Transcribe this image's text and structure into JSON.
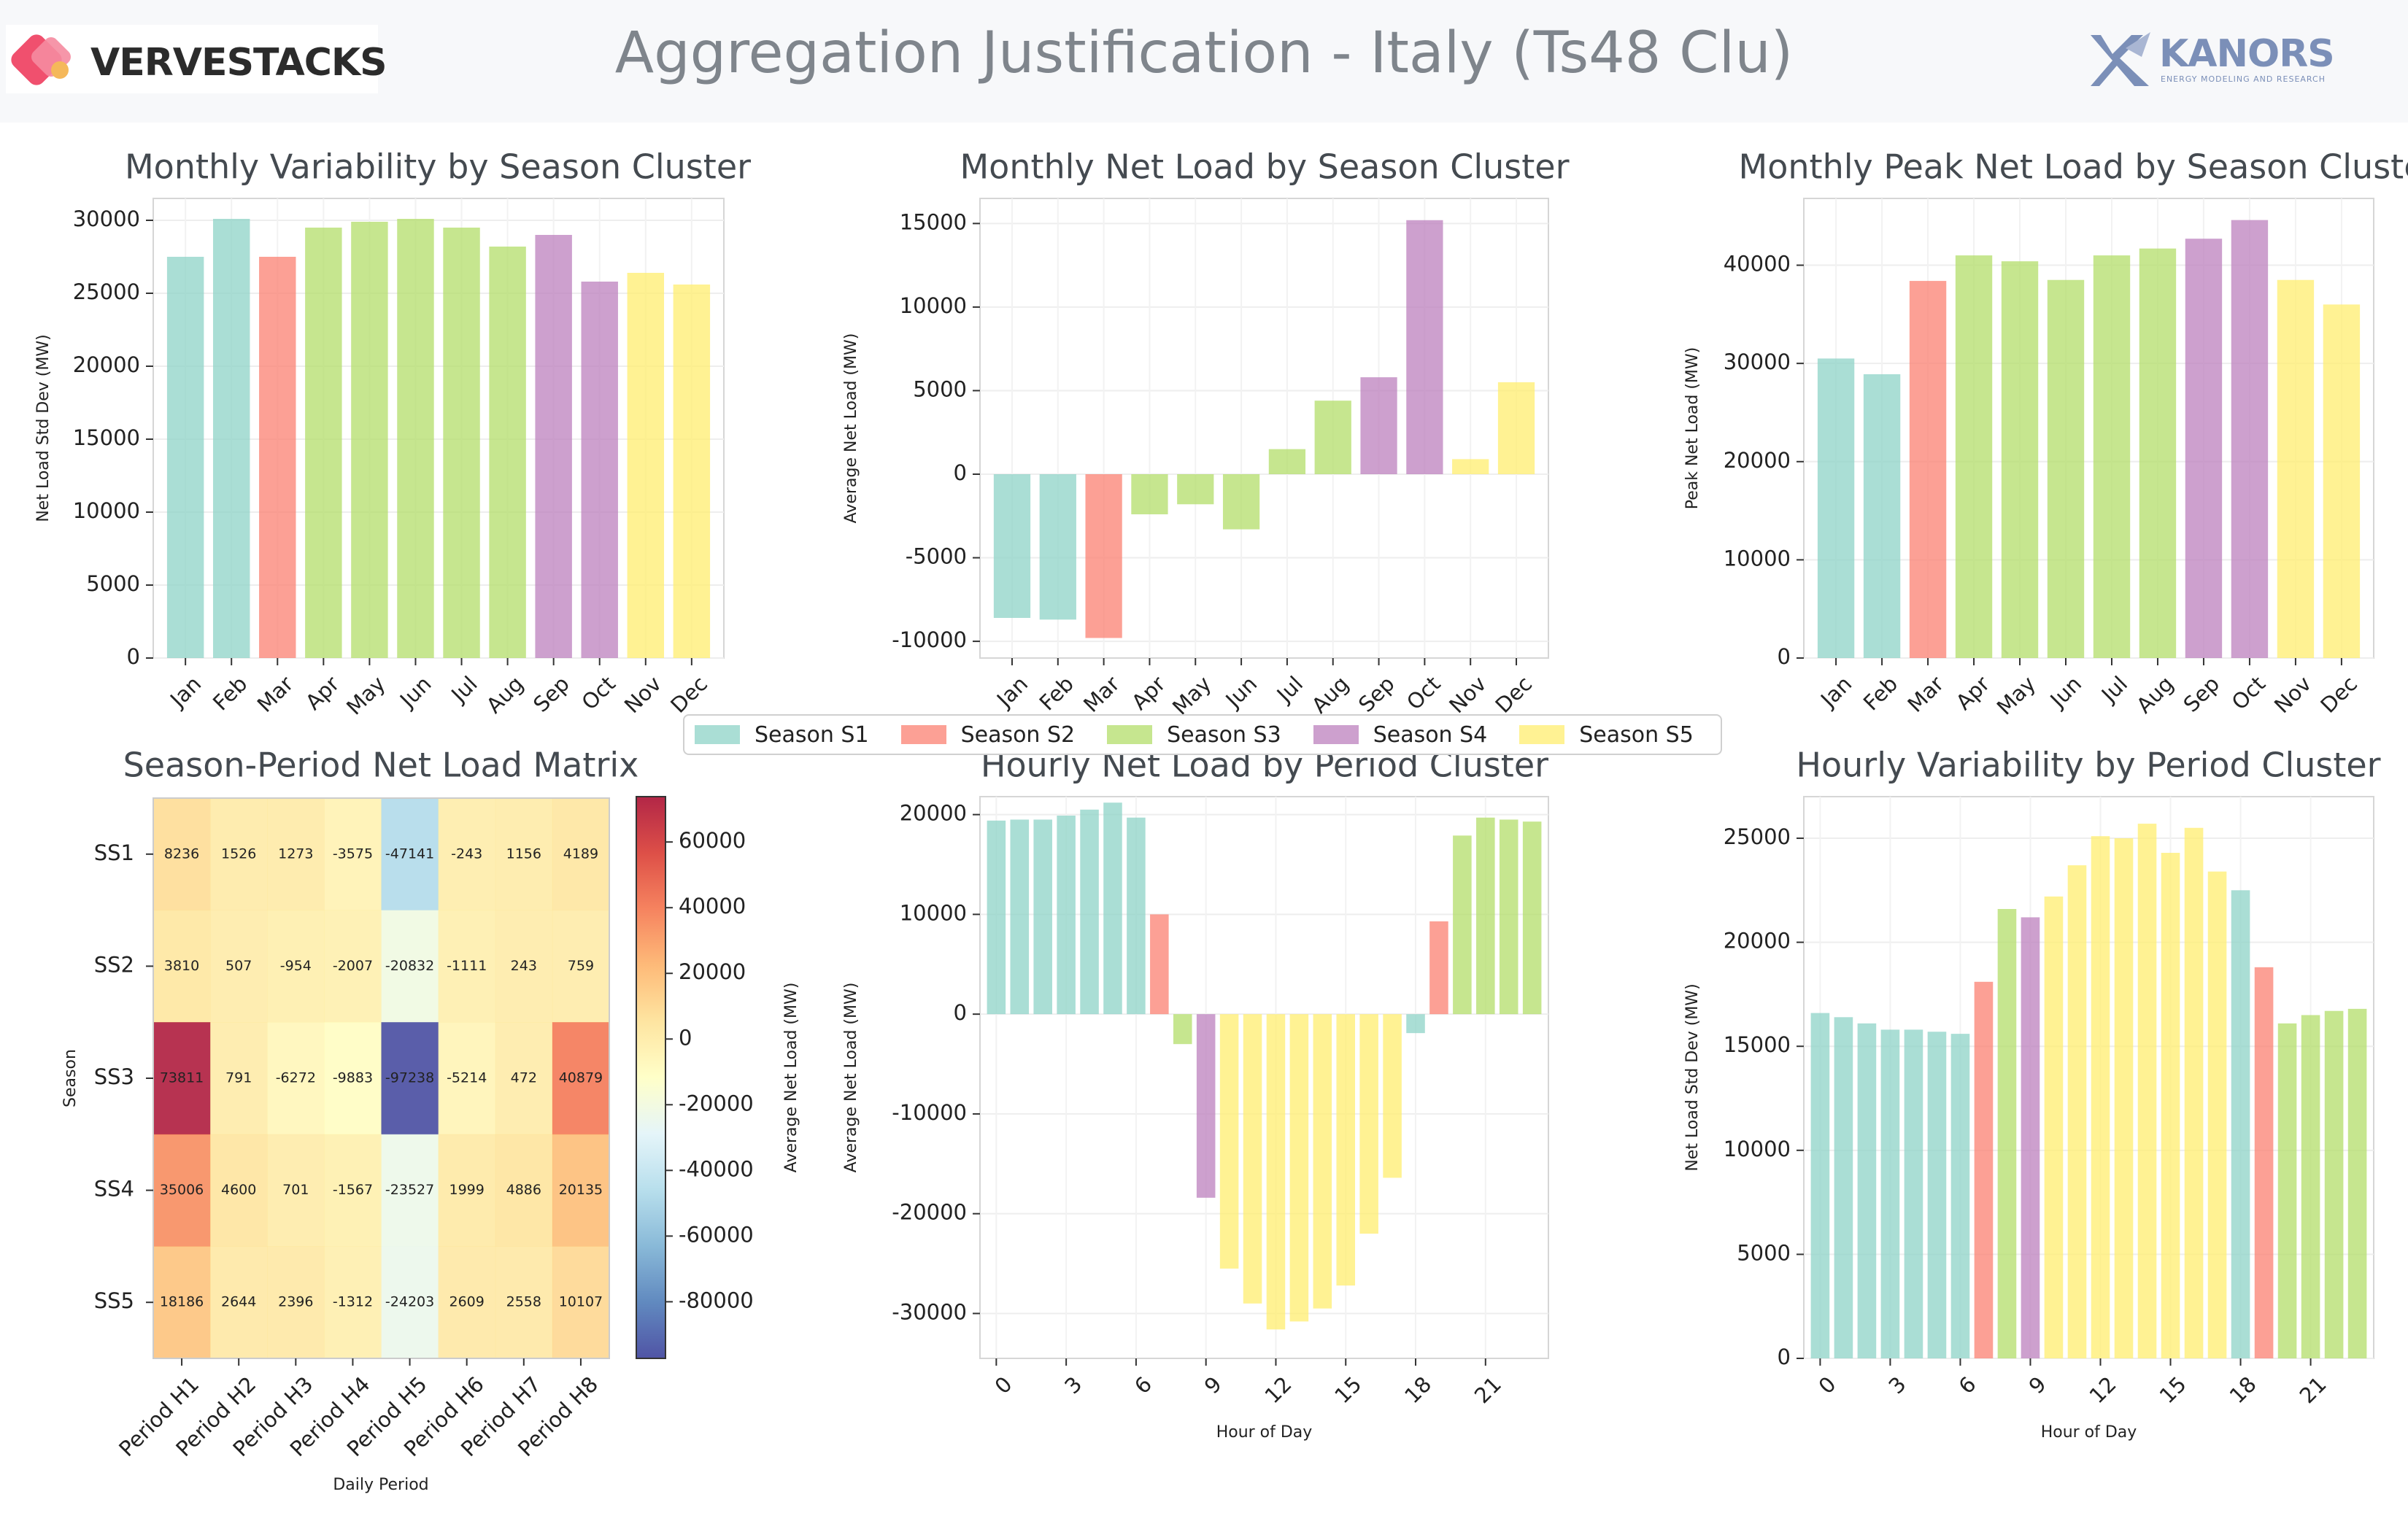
{
  "header": {
    "title": "Aggregation Justification - Italy (Ts48 Clu)",
    "left_logo_text": "VERVESTACKS",
    "right_logo_text": "KANORS",
    "right_logo_subtext": "ENERGY MODELING AND RESEARCH"
  },
  "colors": {
    "S1": "#8dd3c7",
    "S2": "#fb8072",
    "S3": "#b3de69",
    "S4": "#bc80bd",
    "S5": "#ffed6f",
    "vervestacks_logo": "#f0506e",
    "kanors_logo": "#7b8fb8"
  },
  "legend": [
    {
      "key": "S1",
      "label": "Season S1"
    },
    {
      "key": "S2",
      "label": "Season S2"
    },
    {
      "key": "S3",
      "label": "Season S3"
    },
    {
      "key": "S4",
      "label": "Season S4"
    },
    {
      "key": "S5",
      "label": "Season S5"
    }
  ],
  "chart_data": [
    {
      "id": "c1",
      "type": "bar",
      "title": "Monthly Variability by Season Cluster",
      "xlabel": "",
      "ylabel": "Net Load Std Dev (MW)",
      "categories": [
        "Jan",
        "Feb",
        "Mar",
        "Apr",
        "May",
        "Jun",
        "Jul",
        "Aug",
        "Sep",
        "Oct",
        "Nov",
        "Dec"
      ],
      "values": [
        27500,
        30100,
        27500,
        29500,
        29900,
        30100,
        29500,
        28200,
        29000,
        25800,
        26400,
        25600
      ],
      "colors": [
        "S1",
        "S1",
        "S2",
        "S3",
        "S3",
        "S3",
        "S3",
        "S3",
        "S4",
        "S4",
        "S5",
        "S5"
      ],
      "ylim": [
        0,
        31500
      ],
      "yticks": [
        0,
        5000,
        10000,
        15000,
        20000,
        25000,
        30000
      ]
    },
    {
      "id": "c2",
      "type": "bar",
      "title": "Monthly Net Load by Season Cluster",
      "xlabel": "",
      "ylabel": "Average Net Load (MW)",
      "categories": [
        "Jan",
        "Feb",
        "Mar",
        "Apr",
        "May",
        "Jun",
        "Jul",
        "Aug",
        "Sep",
        "Oct",
        "Nov",
        "Dec"
      ],
      "values": [
        -8600,
        -8700,
        -9800,
        -2400,
        -1800,
        -3300,
        1500,
        4400,
        5800,
        15200,
        900,
        5500
      ],
      "colors": [
        "S1",
        "S1",
        "S2",
        "S3",
        "S3",
        "S3",
        "S3",
        "S3",
        "S4",
        "S4",
        "S5",
        "S5"
      ],
      "ylim": [
        -11000,
        16500
      ],
      "yticks": [
        -10000,
        -5000,
        0,
        5000,
        10000,
        15000
      ]
    },
    {
      "id": "c3",
      "type": "bar",
      "title": "Monthly Peak Net Load by Season Cluster",
      "xlabel": "",
      "ylabel": "Peak Net Load (MW)",
      "categories": [
        "Jan",
        "Feb",
        "Mar",
        "Apr",
        "May",
        "Jun",
        "Jul",
        "Aug",
        "Sep",
        "Oct",
        "Nov",
        "Dec"
      ],
      "values": [
        30500,
        28900,
        38400,
        41000,
        40400,
        38500,
        41000,
        41700,
        42700,
        44600,
        38500,
        36000
      ],
      "colors": [
        "S1",
        "S1",
        "S2",
        "S3",
        "S3",
        "S3",
        "S3",
        "S3",
        "S4",
        "S4",
        "S5",
        "S5"
      ],
      "ylim": [
        0,
        46800
      ],
      "yticks": [
        0,
        10000,
        20000,
        30000,
        40000
      ]
    },
    {
      "id": "c4",
      "type": "heatmap",
      "title": "Season-Period Net Load Matrix",
      "xlabel": "Daily Period",
      "ylabel": "Season",
      "colorbar_label": "Average Net Load (MW)",
      "rows": [
        "SS1",
        "SS2",
        "SS3",
        "SS4",
        "SS5"
      ],
      "cols": [
        "Period H1",
        "Period H2",
        "Period H3",
        "Period H4",
        "Period H5",
        "Period H6",
        "Period H7",
        "Period H8"
      ],
      "values": [
        [
          8236,
          1526,
          1273,
          -3575,
          -47141,
          -243,
          1156,
          4189
        ],
        [
          3810,
          507,
          -954,
          -2007,
          -20832,
          -1111,
          243,
          759
        ],
        [
          73811,
          791,
          -6272,
          -9883,
          -97238,
          -5214,
          472,
          40879
        ],
        [
          35006,
          4600,
          701,
          -1567,
          -23527,
          1999,
          4886,
          20135
        ],
        [
          18186,
          2644,
          2396,
          -1312,
          -24203,
          2609,
          2558,
          10107
        ]
      ],
      "vmin": -97238,
      "vmax": 73811,
      "colorbar_ticks": [
        -80000,
        -60000,
        -40000,
        -20000,
        0,
        20000,
        40000,
        60000
      ],
      "colormap": "RdYlBu_r"
    },
    {
      "id": "c5",
      "type": "bar",
      "title": "Hourly Net Load by Period Cluster",
      "xlabel": "Hour of Day",
      "ylabel": "Average Net Load (MW)",
      "categories": [
        0,
        1,
        2,
        3,
        4,
        5,
        6,
        7,
        8,
        9,
        10,
        11,
        12,
        13,
        14,
        15,
        16,
        17,
        18,
        19,
        20,
        21,
        22,
        23
      ],
      "xticks": [
        0,
        3,
        6,
        9,
        12,
        15,
        18,
        21
      ],
      "values": [
        19400,
        19500,
        19500,
        19900,
        20500,
        21200,
        19700,
        10000,
        -3000,
        -18400,
        -25500,
        -29000,
        -31600,
        -30800,
        -29500,
        -27200,
        -22000,
        -16400,
        -1900,
        9300,
        17900,
        19700,
        19500,
        19300
      ],
      "colors": [
        "S1",
        "S1",
        "S1",
        "S1",
        "S1",
        "S1",
        "S1",
        "S2",
        "S3",
        "S4",
        "S5",
        "S5",
        "S5",
        "S5",
        "S5",
        "S5",
        "S5",
        "S5",
        "S1",
        "S2",
        "S3",
        "S3",
        "S3",
        "S3"
      ],
      "ylim": [
        -34500,
        21800
      ],
      "yticks": [
        -30000,
        -20000,
        -10000,
        0,
        10000,
        20000
      ]
    },
    {
      "id": "c6",
      "type": "bar",
      "title": "Hourly Variability by Period Cluster",
      "xlabel": "Hour of Day",
      "ylabel": "Net Load Std Dev (MW)",
      "categories": [
        0,
        1,
        2,
        3,
        4,
        5,
        6,
        7,
        8,
        9,
        10,
        11,
        12,
        13,
        14,
        15,
        16,
        17,
        18,
        19,
        20,
        21,
        22,
        23
      ],
      "xticks": [
        0,
        3,
        6,
        9,
        12,
        15,
        18,
        21
      ],
      "values": [
        16600,
        16400,
        16100,
        15800,
        15800,
        15700,
        15600,
        18100,
        21600,
        21200,
        22200,
        23700,
        25100,
        25000,
        25700,
        24300,
        25500,
        23400,
        22500,
        18800,
        16100,
        16500,
        16700,
        16800
      ],
      "colors": [
        "S1",
        "S1",
        "S1",
        "S1",
        "S1",
        "S1",
        "S1",
        "S2",
        "S3",
        "S4",
        "S5",
        "S5",
        "S5",
        "S5",
        "S5",
        "S5",
        "S5",
        "S5",
        "S1",
        "S2",
        "S3",
        "S3",
        "S3",
        "S3"
      ],
      "ylim": [
        0,
        27000
      ],
      "yticks": [
        0,
        5000,
        10000,
        15000,
        20000,
        25000
      ]
    }
  ]
}
